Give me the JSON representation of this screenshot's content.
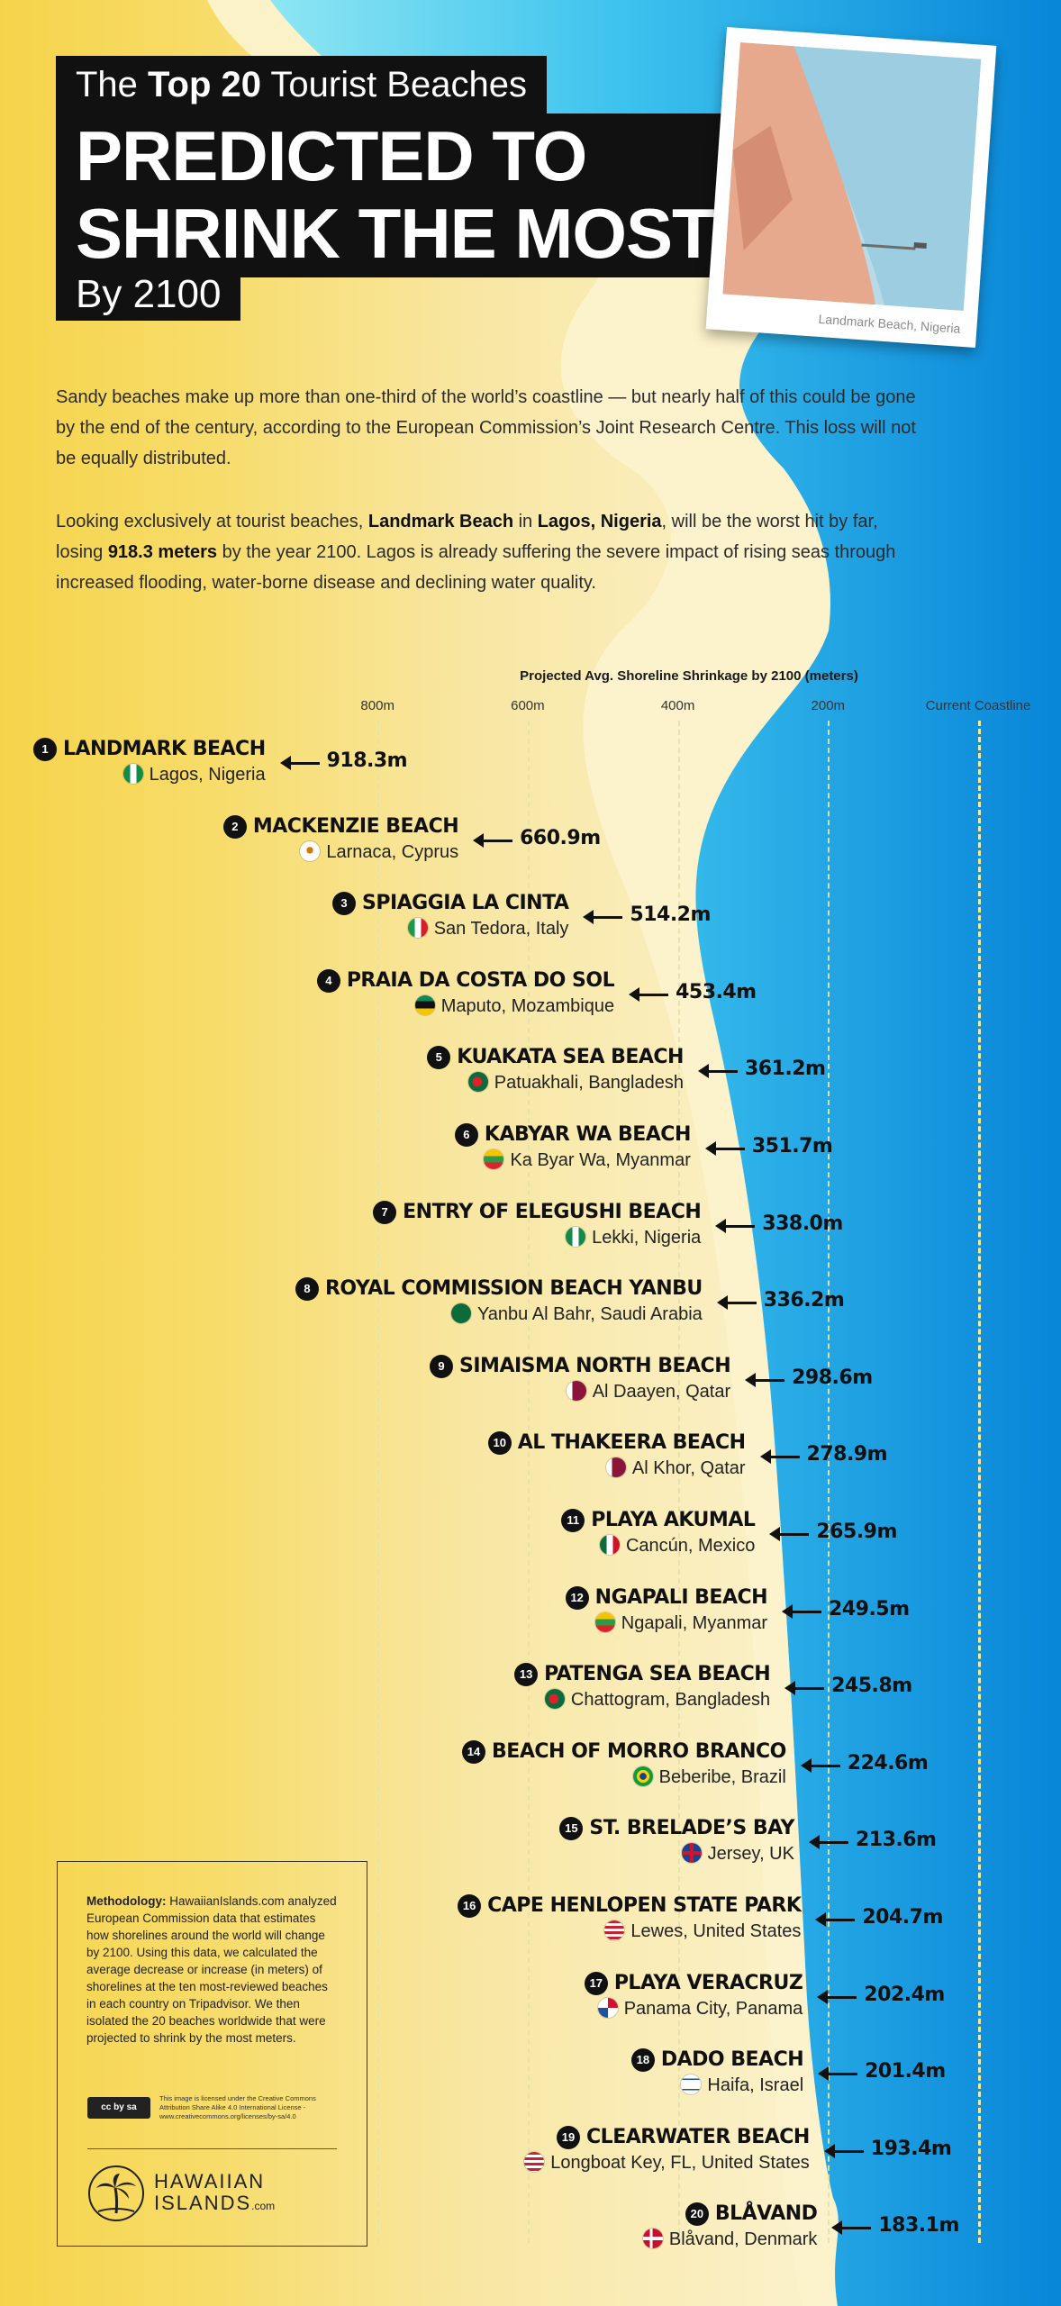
{
  "header": {
    "title_pre": "The ",
    "title_bold": "Top 20",
    "title_post": " Tourist Beaches",
    "title_main_1": "PREDICTED TO",
    "title_main_2": "SHRINK THE MOST",
    "title_year": "By 2100"
  },
  "photo": {
    "caption": "Landmark Beach, Nigeria"
  },
  "intro": {
    "p1": "Sandy beaches make up more than one-third of the world’s coastline — but nearly half of this could be gone by the end of the century, according to the European Commission’s Joint Research Centre. This loss will not be equally distributed.",
    "p2_a": "Looking exclusively at tourist beaches, ",
    "p2_b": "Landmark Beach",
    "p2_c": " in ",
    "p2_d": "Lagos, Nigeria",
    "p2_e": ", will be the worst hit by far, losing ",
    "p2_f": "918.3 meters",
    "p2_g": " by the year 2100. Lagos is already suffering the severe impact of rising seas through increased flooding, water-borne disease and declining water quality."
  },
  "chart_data": {
    "type": "bar",
    "title": "Projected Avg. Shoreline Shrinkage by 2100 (meters)",
    "ticks": [
      "800m",
      "600m",
      "400m",
      "200m",
      "Current Coastline"
    ],
    "tick_values": [
      800,
      600,
      400,
      200,
      0
    ],
    "axis_reversed": true,
    "beaches": [
      {
        "rank": "1",
        "name": "LANDMARK BEACH",
        "location": "Lagos, Nigeria",
        "value": 918.3,
        "label": "918.3m",
        "flag": "nigeria"
      },
      {
        "rank": "2",
        "name": "MACKENZIE BEACH",
        "location": "Larnaca, Cyprus",
        "value": 660.9,
        "label": "660.9m",
        "flag": "cyprus"
      },
      {
        "rank": "3",
        "name": "SPIAGGIA LA CINTA",
        "location": "San Tedora, Italy",
        "value": 514.2,
        "label": "514.2m",
        "flag": "italy"
      },
      {
        "rank": "4",
        "name": "PRAIA DA COSTA DO SOL",
        "location": "Maputo, Mozambique",
        "value": 453.4,
        "label": "453.4m",
        "flag": "mozambique"
      },
      {
        "rank": "5",
        "name": "KUAKATA SEA BEACH",
        "location": "Patuakhali, Bangladesh",
        "value": 361.2,
        "label": "361.2m",
        "flag": "bangladesh"
      },
      {
        "rank": "6",
        "name": "KABYAR WA BEACH",
        "location": "Ka Byar Wa, Myanmar",
        "value": 351.7,
        "label": "351.7m",
        "flag": "myanmar"
      },
      {
        "rank": "7",
        "name": "ENTRY OF ELEGUSHI BEACH",
        "location": "Lekki, Nigeria",
        "value": 338.0,
        "label": "338.0m",
        "flag": "nigeria"
      },
      {
        "rank": "8",
        "name": "ROYAL COMMISSION BEACH YANBU",
        "location": "Yanbu Al Bahr, Saudi Arabia",
        "value": 336.2,
        "label": "336.2m",
        "flag": "saudi"
      },
      {
        "rank": "9",
        "name": "SIMAISMA NORTH BEACH",
        "location": "Al Daayen, Qatar",
        "value": 298.6,
        "label": "298.6m",
        "flag": "qatar"
      },
      {
        "rank": "10",
        "name": "AL THAKEERA BEACH",
        "location": "Al Khor, Qatar",
        "value": 278.9,
        "label": "278.9m",
        "flag": "qatar"
      },
      {
        "rank": "11",
        "name": "PLAYA AKUMAL",
        "location": "Cancún, Mexico",
        "value": 265.9,
        "label": "265.9m",
        "flag": "mexico"
      },
      {
        "rank": "12",
        "name": "NGAPALI BEACH",
        "location": "Ngapali, Myanmar",
        "value": 249.5,
        "label": "249.5m",
        "flag": "myanmar"
      },
      {
        "rank": "13",
        "name": "PATENGA SEA BEACH",
        "location": "Chattogram, Bangladesh",
        "value": 245.8,
        "label": "245.8m",
        "flag": "bangladesh"
      },
      {
        "rank": "14",
        "name": "BEACH OF MORRO BRANCO",
        "location": "Beberibe, Brazil",
        "value": 224.6,
        "label": "224.6m",
        "flag": "brazil"
      },
      {
        "rank": "15",
        "name": "ST. BRELADE’S BAY",
        "location": "Jersey, UK",
        "value": 213.6,
        "label": "213.6m",
        "flag": "uk"
      },
      {
        "rank": "16",
        "name": "CAPE HENLOPEN STATE PARK",
        "location": "Lewes, United States",
        "value": 204.7,
        "label": "204.7m",
        "flag": "usa"
      },
      {
        "rank": "17",
        "name": "PLAYA VERACRUZ",
        "location": "Panama City, Panama",
        "value": 202.4,
        "label": "202.4m",
        "flag": "panama"
      },
      {
        "rank": "18",
        "name": "DADO BEACH",
        "location": "Haifa, Israel",
        "value": 201.4,
        "label": "201.4m",
        "flag": "israel"
      },
      {
        "rank": "19",
        "name": "CLEARWATER BEACH",
        "location": "Longboat Key, FL, United States",
        "value": 193.4,
        "label": "193.4m",
        "flag": "usa"
      },
      {
        "rank": "20",
        "name": "BLÅVAND",
        "location": "Blåvand, Denmark",
        "value": 183.1,
        "label": "183.1m",
        "flag": "denmark"
      }
    ]
  },
  "methodology": {
    "heading": "Methodology:",
    "text": " HawaiianIslands.com analyzed European Commission data that estimates how shorelines around the world will change by 2100. Using this data, we calculated the average decrease or increase (in meters) of shorelines at the ten most-reviewed beaches in each country on Tripadvisor. We then isolated the 20 beaches worldwide that were projected to shrink by the most meters.",
    "license_badge": "cc by sa",
    "license_text": "This image is licensed under the Creative Commons Attribution Share Alike 4.0 International License - www.creativecommons.org/licenses/by-sa/4.0",
    "logo_name": "HAWAIIAN",
    "logo_name_2": "ISLANDS",
    "logo_domain": ".com"
  },
  "colors": {
    "sand": "#f6d44a",
    "sea_light": "#7fe0ef",
    "sea_deep": "#0b8fdc",
    "text": "#111111"
  }
}
